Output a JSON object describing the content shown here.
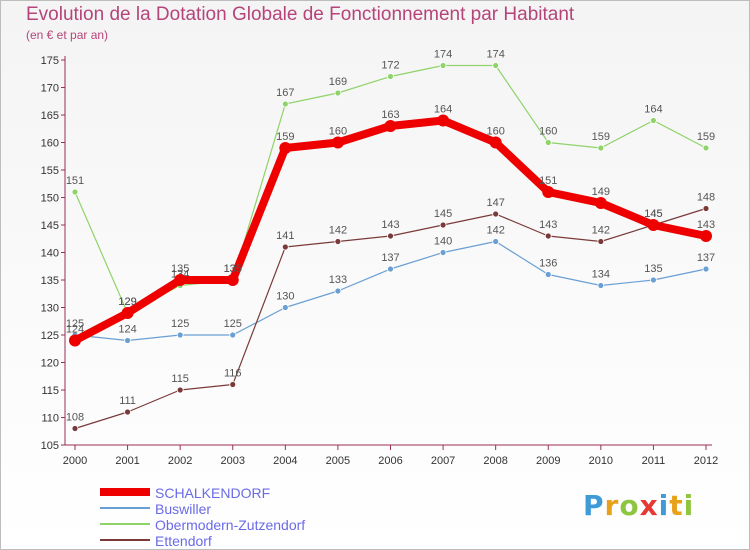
{
  "title": "Evolution de la Dotation Globale de Fonctionnement par Habitant",
  "subtitle": "(en € et par an)",
  "logo": {
    "letters": [
      "P",
      "r",
      "o",
      "x",
      "i",
      "t",
      "i"
    ],
    "colors": [
      "#3f9ad8",
      "#e8a21a",
      "#8fc63f",
      "#e53935",
      "#3f9ad8",
      "#e8a21a",
      "#8fc63f"
    ]
  },
  "chart_data": {
    "type": "line",
    "title": "Evolution de la Dotation Globale de Fonctionnement par Habitant",
    "subtitle": "(en € et par an)",
    "x": [
      "2000",
      "2001",
      "2002",
      "2003",
      "2004",
      "2005",
      "2006",
      "2007",
      "2008",
      "2009",
      "2010",
      "2011",
      "2012"
    ],
    "ylim": [
      105,
      175
    ],
    "yticks": [
      105,
      110,
      115,
      120,
      125,
      130,
      135,
      140,
      145,
      150,
      155,
      160,
      165,
      170,
      175
    ],
    "grid": false,
    "legend_position": "bottom-left",
    "series": [
      {
        "name": "Buswiller",
        "color": "#6a9fd4",
        "values": [
          125,
          124,
          125,
          125,
          130,
          133,
          137,
          140,
          142,
          136,
          134,
          135,
          137
        ]
      },
      {
        "name": "Obermodern-Zutzendorf",
        "color": "#90d36a",
        "values": [
          151,
          129,
          134,
          135,
          167,
          169,
          172,
          174,
          174,
          160,
          159,
          164,
          159
        ]
      },
      {
        "name": "Ettendorf",
        "color": "#7a3a3a",
        "values": [
          108,
          111,
          115,
          116,
          141,
          142,
          143,
          145,
          147,
          143,
          142,
          145,
          148
        ]
      },
      {
        "name": "SCHALKENDORF",
        "color": "#ee0000",
        "values": [
          124,
          129,
          135,
          135,
          159,
          160,
          163,
          164,
          160,
          151,
          149,
          145,
          143
        ]
      }
    ],
    "legend_order": [
      "SCHALKENDORF",
      "Buswiller",
      "Obermodern-Zutzendorf",
      "Ettendorf"
    ]
  }
}
